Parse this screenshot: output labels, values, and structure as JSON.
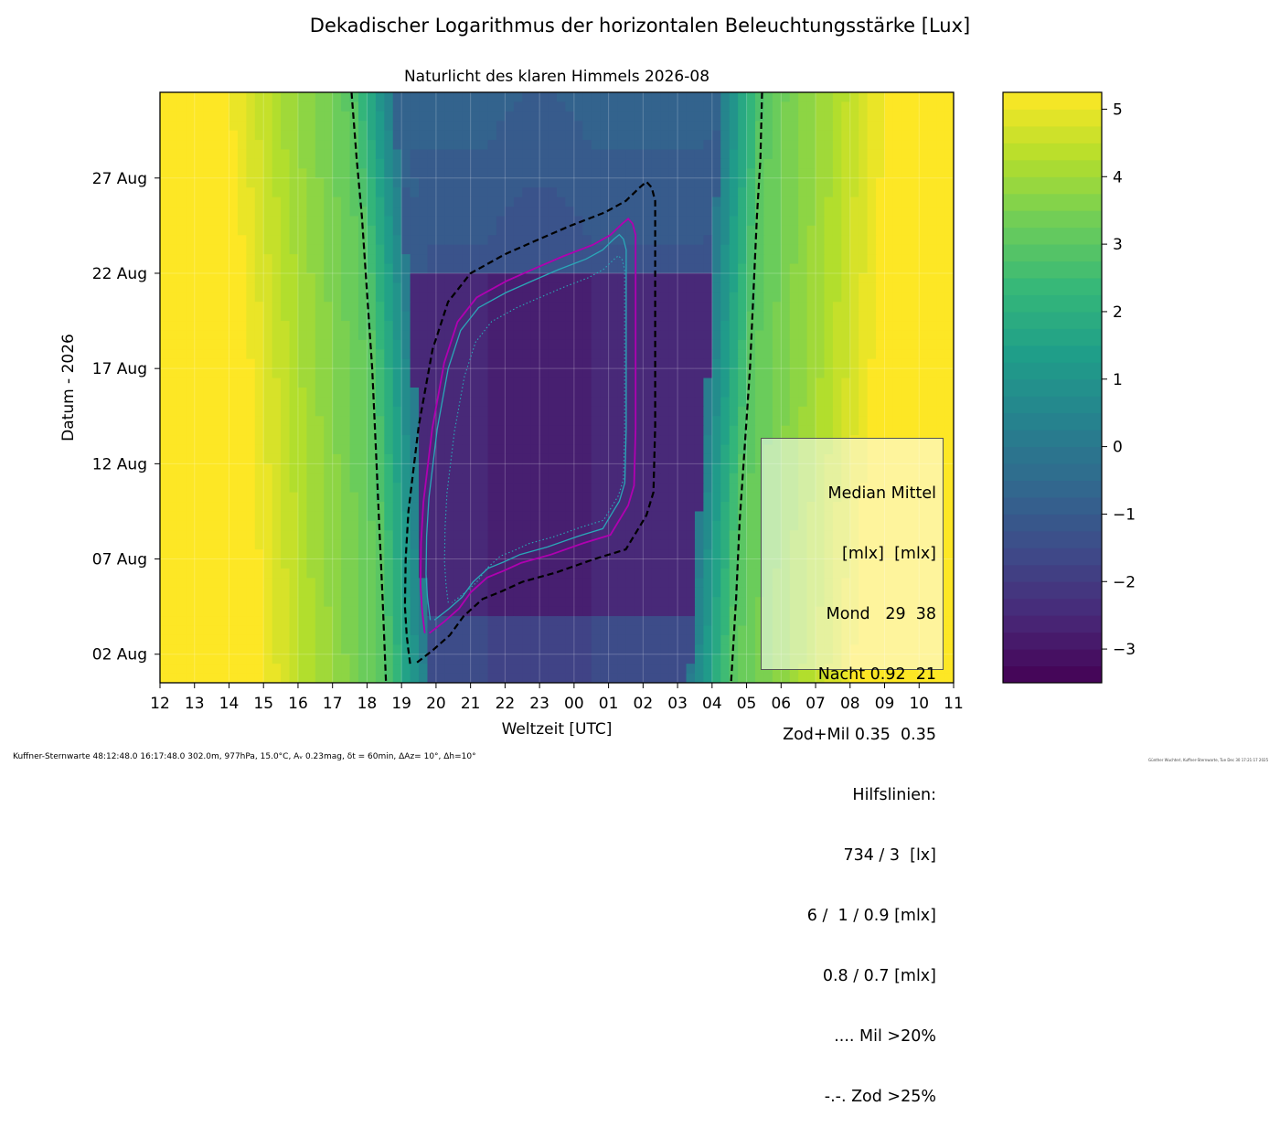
{
  "chart_data": {
    "type": "heatmap",
    "title": "Dekadischer Logarithmus der horizontalen Beleuchtungsstärke [Lux]",
    "subtitle": "Naturlicht des klaren Himmels 2026-08",
    "xlabel": "Weltzeit [UTC]",
    "ylabel": "Datum - 2026",
    "x_ticks": [
      "12",
      "13",
      "14",
      "15",
      "16",
      "17",
      "18",
      "19",
      "20",
      "21",
      "22",
      "23",
      "00",
      "01",
      "02",
      "03",
      "04",
      "05",
      "06",
      "07",
      "08",
      "09",
      "10",
      "11"
    ],
    "y_ticks": [
      "02 Aug",
      "07 Aug",
      "12 Aug",
      "17 Aug",
      "22 Aug",
      "27 Aug"
    ],
    "xlim_hours_from_12utc": [
      0,
      23
    ],
    "ylim_day_of_month": [
      0.5,
      31.5
    ],
    "colorbar": {
      "ticks": [
        "5",
        "4",
        "3",
        "2",
        "1",
        "0",
        "−1",
        "−2",
        "−3"
      ],
      "tick_values": [
        5,
        4,
        3,
        2,
        1,
        0,
        -1,
        -2,
        -3
      ],
      "range": [
        -3.5,
        5.25
      ],
      "colormap": "viridis"
    },
    "civil_twilight_line_dashed": {
      "evening_x": [
        5.55,
        5.7,
        5.85,
        6.0,
        6.15,
        6.25,
        6.35,
        6.45,
        6.55
      ],
      "evening_y": [
        31.5,
        28,
        25,
        21,
        17,
        13,
        9,
        5,
        0.5
      ],
      "morning_x": [
        17.45,
        17.4,
        17.3,
        17.2,
        17.1,
        16.95,
        16.8,
        16.7,
        16.55
      ],
      "morning_y": [
        31.5,
        28,
        25,
        21,
        17,
        13,
        9,
        5,
        0.5
      ]
    },
    "inner_threshold_line_dashed": {
      "x": [
        7.25,
        7.2,
        7.15,
        7.1,
        7.12,
        7.2,
        7.5,
        7.9,
        8.35,
        9.0,
        10.0,
        11.0,
        11.9,
        12.9,
        13.5,
        13.9,
        14.1,
        14.25,
        14.35,
        14.35,
        14.35,
        14.3,
        14.1,
        13.8,
        13.5,
        12.6,
        11.5,
        10.5,
        9.9,
        9.35,
        8.8,
        8.4,
        7.9,
        7.4
      ],
      "y": [
        1.5,
        2.2,
        3.0,
        4.5,
        7.0,
        9.5,
        14.0,
        18.0,
        20.5,
        22.0,
        23.0,
        23.8,
        24.5,
        25.2,
        25.8,
        26.5,
        26.8,
        26.5,
        25.8,
        21.0,
        14.0,
        10.5,
        9.3,
        8.4,
        7.5,
        7.0,
        6.3,
        5.8,
        5.3,
        4.9,
        4.0,
        3.0,
        2.2,
        1.5
      ]
    },
    "legend": {
      "lines": [
        "Median Mittel",
        "[mlx]  [mlx]",
        "Mond   29  38",
        "Nacht 0.92  21",
        "Zod+Mil 0.35  0.35",
        "Hilfslinien:",
        "734 / 3  [lx]",
        "6 /  1 / 0.9 [mlx]",
        "0.8 / 0.7 [mlx]",
        ".... Mil >20%",
        "-.-. Zod >25%"
      ]
    },
    "colors": {
      "dashed_lines": "#000000",
      "magenta_contour": "#b000b0",
      "cyan_contour": "#2aa8b8",
      "dotted_contour": "#2aa8b8"
    }
  },
  "footer": {
    "left": "Kuffner-Sternwarte 48:12:48.0 16:17:48.0 302.0m,  977hPa, 15.0°C, Aᵥ 0.23mag, δt = 60min, ΔAz= 10°, Δh=10°",
    "right": "Günther Wuchterl, Kuffner-Sternwarte, Tue Dec 30 17:21:17 2025"
  }
}
